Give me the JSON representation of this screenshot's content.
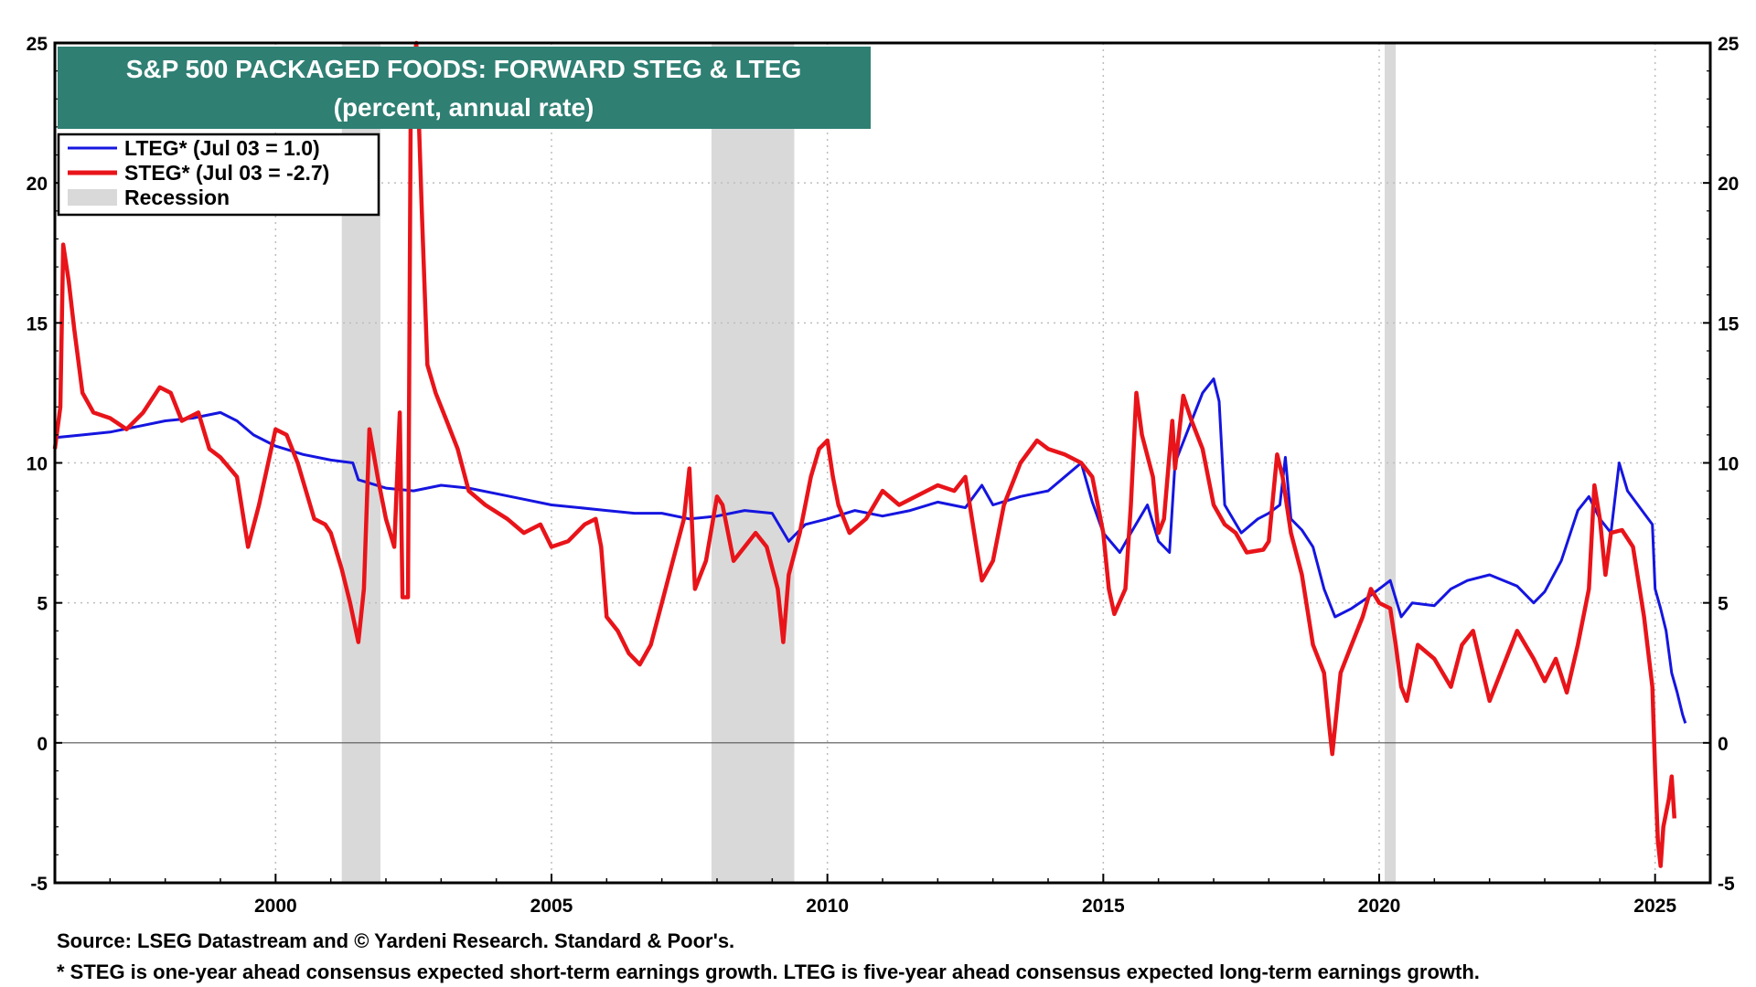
{
  "colors": {
    "title_bg": "#2f7f73",
    "lteg": "#1515e0",
    "steg": "#e8141a",
    "recession": "#d9d9d9",
    "grid": "#bdbdbd"
  },
  "footer": {
    "source": "Source: LSEG Datastream and © Yardeni Research. Standard & Poor's.",
    "note": "* STEG is one-year ahead consensus expected short-term earnings growth. LTEG is five-year ahead consensus expected long-term earnings growth."
  },
  "chart_data": {
    "type": "line",
    "title": "S&P 500 PACKAGED FOODS: FORWARD STEG & LTEG",
    "subtitle": "(percent, annual rate)",
    "xlabel": "",
    "ylabel": "",
    "xlim": [
      1996.0,
      2026.0
    ],
    "ylim": [
      -5,
      25
    ],
    "x_ticks": [
      2000,
      2005,
      2010,
      2015,
      2020,
      2025
    ],
    "y_ticks": [
      -5,
      0,
      5,
      10,
      15,
      20,
      25
    ],
    "grid": true,
    "legend_position": "top-left",
    "legend": [
      {
        "key": "lteg",
        "label": "LTEG* (Jul 03 = 1.0)"
      },
      {
        "key": "steg",
        "label": "STEG* (Jul 03 = -2.7)"
      },
      {
        "key": "recession",
        "label": "Recession"
      }
    ],
    "recessions": [
      [
        2001.2,
        2001.9
      ],
      [
        2007.9,
        2009.4
      ],
      [
        2020.1,
        2020.3
      ]
    ],
    "series": [
      {
        "name": "LTEG* (Jul 03 = 1.0)",
        "key": "lteg",
        "points": [
          [
            1996.0,
            10.9
          ],
          [
            1996.5,
            11.0
          ],
          [
            1997.0,
            11.1
          ],
          [
            1997.5,
            11.3
          ],
          [
            1998.0,
            11.5
          ],
          [
            1998.5,
            11.6
          ],
          [
            1999.0,
            11.8
          ],
          [
            1999.3,
            11.5
          ],
          [
            1999.6,
            11.0
          ],
          [
            2000.0,
            10.6
          ],
          [
            2000.5,
            10.3
          ],
          [
            2001.0,
            10.1
          ],
          [
            2001.4,
            10.0
          ],
          [
            2001.5,
            9.4
          ],
          [
            2002.0,
            9.1
          ],
          [
            2002.5,
            9.0
          ],
          [
            2003.0,
            9.2
          ],
          [
            2003.5,
            9.1
          ],
          [
            2004.0,
            8.9
          ],
          [
            2004.5,
            8.7
          ],
          [
            2005.0,
            8.5
          ],
          [
            2005.5,
            8.4
          ],
          [
            2006.0,
            8.3
          ],
          [
            2006.5,
            8.2
          ],
          [
            2007.0,
            8.2
          ],
          [
            2007.5,
            8.0
          ],
          [
            2008.0,
            8.1
          ],
          [
            2008.5,
            8.3
          ],
          [
            2009.0,
            8.2
          ],
          [
            2009.3,
            7.2
          ],
          [
            2009.6,
            7.8
          ],
          [
            2010.0,
            8.0
          ],
          [
            2010.5,
            8.3
          ],
          [
            2011.0,
            8.1
          ],
          [
            2011.5,
            8.3
          ],
          [
            2012.0,
            8.6
          ],
          [
            2012.5,
            8.4
          ],
          [
            2012.8,
            9.2
          ],
          [
            2013.0,
            8.5
          ],
          [
            2013.5,
            8.8
          ],
          [
            2014.0,
            9.0
          ],
          [
            2014.3,
            9.5
          ],
          [
            2014.6,
            10.0
          ],
          [
            2014.8,
            8.6
          ],
          [
            2015.0,
            7.5
          ],
          [
            2015.3,
            6.8
          ],
          [
            2015.5,
            7.5
          ],
          [
            2015.8,
            8.5
          ],
          [
            2016.0,
            7.2
          ],
          [
            2016.2,
            6.8
          ],
          [
            2016.3,
            10.0
          ],
          [
            2016.5,
            11.0
          ],
          [
            2016.8,
            12.5
          ],
          [
            2017.0,
            13.0
          ],
          [
            2017.1,
            12.2
          ],
          [
            2017.2,
            8.5
          ],
          [
            2017.5,
            7.5
          ],
          [
            2017.8,
            8.0
          ],
          [
            2018.0,
            8.2
          ],
          [
            2018.2,
            8.5
          ],
          [
            2018.3,
            10.2
          ],
          [
            2018.4,
            8.0
          ],
          [
            2018.6,
            7.6
          ],
          [
            2018.8,
            7.0
          ],
          [
            2019.0,
            5.5
          ],
          [
            2019.2,
            4.5
          ],
          [
            2019.5,
            4.8
          ],
          [
            2019.8,
            5.2
          ],
          [
            2020.0,
            5.5
          ],
          [
            2020.2,
            5.8
          ],
          [
            2020.4,
            4.5
          ],
          [
            2020.6,
            5.0
          ],
          [
            2021.0,
            4.9
          ],
          [
            2021.3,
            5.5
          ],
          [
            2021.6,
            5.8
          ],
          [
            2022.0,
            6.0
          ],
          [
            2022.5,
            5.6
          ],
          [
            2022.8,
            5.0
          ],
          [
            2023.0,
            5.4
          ],
          [
            2023.3,
            6.5
          ],
          [
            2023.6,
            8.3
          ],
          [
            2023.8,
            8.8
          ],
          [
            2024.0,
            8.0
          ],
          [
            2024.2,
            7.5
          ],
          [
            2024.35,
            10.0
          ],
          [
            2024.5,
            9.0
          ],
          [
            2024.8,
            8.2
          ],
          [
            2024.95,
            7.8
          ],
          [
            2025.0,
            5.5
          ],
          [
            2025.1,
            4.8
          ],
          [
            2025.2,
            4.0
          ],
          [
            2025.3,
            2.5
          ],
          [
            2025.4,
            1.8
          ],
          [
            2025.5,
            1.0
          ],
          [
            2025.55,
            0.7
          ]
        ]
      },
      {
        "name": "STEG* (Jul 03 = -2.7)",
        "key": "steg",
        "points": [
          [
            1996.0,
            10.5
          ],
          [
            1996.1,
            12.0
          ],
          [
            1996.15,
            17.8
          ],
          [
            1996.25,
            16.5
          ],
          [
            1996.35,
            14.8
          ],
          [
            1996.5,
            12.5
          ],
          [
            1996.7,
            11.8
          ],
          [
            1997.0,
            11.6
          ],
          [
            1997.3,
            11.2
          ],
          [
            1997.6,
            11.8
          ],
          [
            1997.9,
            12.7
          ],
          [
            1998.1,
            12.5
          ],
          [
            1998.3,
            11.5
          ],
          [
            1998.6,
            11.8
          ],
          [
            1998.8,
            10.5
          ],
          [
            1999.0,
            10.2
          ],
          [
            1999.3,
            9.5
          ],
          [
            1999.5,
            7.0
          ],
          [
            1999.7,
            8.5
          ],
          [
            2000.0,
            11.2
          ],
          [
            2000.2,
            11.0
          ],
          [
            2000.4,
            10.0
          ],
          [
            2000.7,
            8.0
          ],
          [
            2000.9,
            7.8
          ],
          [
            2001.0,
            7.5
          ],
          [
            2001.2,
            6.2
          ],
          [
            2001.35,
            5.0
          ],
          [
            2001.5,
            3.6
          ],
          [
            2001.6,
            5.5
          ],
          [
            2001.7,
            11.2
          ],
          [
            2001.85,
            9.5
          ],
          [
            2002.0,
            8.0
          ],
          [
            2002.15,
            7.0
          ],
          [
            2002.25,
            11.8
          ],
          [
            2002.3,
            5.2
          ],
          [
            2002.4,
            5.2
          ],
          [
            2002.45,
            23.5
          ],
          [
            2002.55,
            25.0
          ],
          [
            2002.65,
            19.0
          ],
          [
            2002.75,
            13.5
          ],
          [
            2002.9,
            12.5
          ],
          [
            2003.1,
            11.5
          ],
          [
            2003.3,
            10.5
          ],
          [
            2003.5,
            9.0
          ],
          [
            2003.8,
            8.5
          ],
          [
            2004.2,
            8.0
          ],
          [
            2004.5,
            7.5
          ],
          [
            2004.8,
            7.8
          ],
          [
            2005.0,
            7.0
          ],
          [
            2005.3,
            7.2
          ],
          [
            2005.6,
            7.8
          ],
          [
            2005.8,
            8.0
          ],
          [
            2005.9,
            7.0
          ],
          [
            2006.0,
            4.5
          ],
          [
            2006.2,
            4.0
          ],
          [
            2006.4,
            3.2
          ],
          [
            2006.6,
            2.8
          ],
          [
            2006.8,
            3.5
          ],
          [
            2007.0,
            5.0
          ],
          [
            2007.2,
            6.5
          ],
          [
            2007.4,
            8.0
          ],
          [
            2007.5,
            9.8
          ],
          [
            2007.6,
            5.5
          ],
          [
            2007.8,
            6.5
          ],
          [
            2008.0,
            8.8
          ],
          [
            2008.1,
            8.5
          ],
          [
            2008.3,
            6.5
          ],
          [
            2008.5,
            7.0
          ],
          [
            2008.7,
            7.5
          ],
          [
            2008.9,
            7.0
          ],
          [
            2009.1,
            5.5
          ],
          [
            2009.2,
            3.6
          ],
          [
            2009.3,
            6.0
          ],
          [
            2009.5,
            7.5
          ],
          [
            2009.7,
            9.5
          ],
          [
            2009.85,
            10.5
          ],
          [
            2010.0,
            10.8
          ],
          [
            2010.1,
            9.5
          ],
          [
            2010.2,
            8.5
          ],
          [
            2010.4,
            7.5
          ],
          [
            2010.7,
            8.0
          ],
          [
            2011.0,
            9.0
          ],
          [
            2011.3,
            8.5
          ],
          [
            2011.6,
            8.8
          ],
          [
            2012.0,
            9.2
          ],
          [
            2012.3,
            9.0
          ],
          [
            2012.5,
            9.5
          ],
          [
            2012.7,
            7.0
          ],
          [
            2012.8,
            5.8
          ],
          [
            2013.0,
            6.5
          ],
          [
            2013.2,
            8.5
          ],
          [
            2013.5,
            10.0
          ],
          [
            2013.8,
            10.8
          ],
          [
            2014.0,
            10.5
          ],
          [
            2014.3,
            10.3
          ],
          [
            2014.6,
            10.0
          ],
          [
            2014.8,
            9.5
          ],
          [
            2015.0,
            7.5
          ],
          [
            2015.1,
            5.5
          ],
          [
            2015.2,
            4.6
          ],
          [
            2015.4,
            5.5
          ],
          [
            2015.5,
            8.5
          ],
          [
            2015.6,
            12.5
          ],
          [
            2015.7,
            11.0
          ],
          [
            2015.9,
            9.5
          ],
          [
            2016.0,
            7.5
          ],
          [
            2016.1,
            8.0
          ],
          [
            2016.25,
            11.5
          ],
          [
            2016.3,
            9.8
          ],
          [
            2016.45,
            12.4
          ],
          [
            2016.6,
            11.5
          ],
          [
            2016.8,
            10.5
          ],
          [
            2017.0,
            8.5
          ],
          [
            2017.2,
            7.8
          ],
          [
            2017.4,
            7.5
          ],
          [
            2017.6,
            6.8
          ],
          [
            2017.9,
            6.9
          ],
          [
            2018.0,
            7.2
          ],
          [
            2018.15,
            10.3
          ],
          [
            2018.25,
            9.5
          ],
          [
            2018.4,
            7.5
          ],
          [
            2018.6,
            6.0
          ],
          [
            2018.8,
            3.5
          ],
          [
            2019.0,
            2.5
          ],
          [
            2019.1,
            0.5
          ],
          [
            2019.15,
            -0.4
          ],
          [
            2019.3,
            2.5
          ],
          [
            2019.5,
            3.5
          ],
          [
            2019.7,
            4.5
          ],
          [
            2019.85,
            5.5
          ],
          [
            2020.0,
            5.0
          ],
          [
            2020.2,
            4.8
          ],
          [
            2020.3,
            3.5
          ],
          [
            2020.4,
            2.0
          ],
          [
            2020.5,
            1.5
          ],
          [
            2020.7,
            3.5
          ],
          [
            2021.0,
            3.0
          ],
          [
            2021.3,
            2.0
          ],
          [
            2021.5,
            3.5
          ],
          [
            2021.7,
            4.0
          ],
          [
            2022.0,
            1.5
          ],
          [
            2022.2,
            2.5
          ],
          [
            2022.5,
            4.0
          ],
          [
            2022.8,
            3.0
          ],
          [
            2023.0,
            2.2
          ],
          [
            2023.2,
            3.0
          ],
          [
            2023.4,
            1.8
          ],
          [
            2023.6,
            3.5
          ],
          [
            2023.8,
            5.5
          ],
          [
            2023.9,
            9.2
          ],
          [
            2024.0,
            8.0
          ],
          [
            2024.1,
            6.0
          ],
          [
            2024.2,
            7.5
          ],
          [
            2024.4,
            7.6
          ],
          [
            2024.6,
            7.0
          ],
          [
            2024.8,
            4.5
          ],
          [
            2024.95,
            2.0
          ],
          [
            2025.0,
            -1.0
          ],
          [
            2025.05,
            -3.5
          ],
          [
            2025.1,
            -4.4
          ],
          [
            2025.15,
            -3.0
          ],
          [
            2025.25,
            -2.0
          ],
          [
            2025.3,
            -1.2
          ],
          [
            2025.35,
            -2.7
          ]
        ]
      }
    ]
  }
}
